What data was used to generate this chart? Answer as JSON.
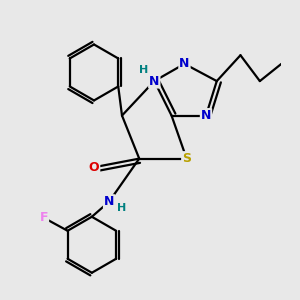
{
  "background_color": "#e8e8e8",
  "atom_colors": {
    "C": "#000000",
    "N": "#0000cc",
    "S": "#b8a000",
    "O": "#dd0000",
    "F": "#ee82ee",
    "H": "#008080"
  },
  "bond_color": "#000000",
  "lw": 1.6,
  "xlim": [
    -2.5,
    3.2
  ],
  "ylim": [
    -3.8,
    3.0
  ]
}
